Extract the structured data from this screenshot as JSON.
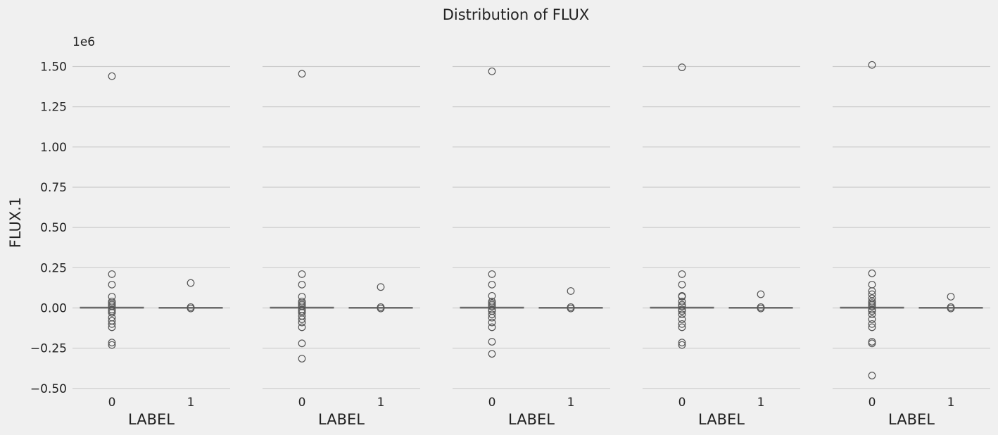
{
  "chart_data": {
    "type": "box",
    "title": "Distribution of FLUX",
    "ylabel": "FLUX.1",
    "y_offset_label": "1e6",
    "ylim": [
      -0.55,
      1.65
    ],
    "yticks": [
      -0.5,
      -0.25,
      0.0,
      0.25,
      0.5,
      0.75,
      1.0,
      1.25,
      1.5
    ],
    "ytick_labels": [
      "−0.50",
      "−0.25",
      "0.00",
      "0.25",
      "0.50",
      "0.75",
      "1.00",
      "1.25",
      "1.50"
    ],
    "grid": true,
    "colors": {
      "background": "#f0f0f0",
      "grid": "#cbcbcb",
      "box": "#6b6b6b",
      "flier": "#555555"
    },
    "panels": [
      {
        "xlabel": "LABEL",
        "categories": [
          "0",
          "1"
        ],
        "boxes": [
          {
            "q1": -0.002,
            "median": 0.0,
            "q3": 0.002,
            "outliers": [
              1.44,
              0.21,
              0.145,
              0.07,
              0.04,
              0.03,
              0.02,
              0.01,
              -0.01,
              -0.02,
              -0.03,
              -0.06,
              -0.08,
              -0.1,
              -0.12,
              -0.215,
              -0.23
            ]
          },
          {
            "q1": -0.001,
            "median": 0.0,
            "q3": 0.001,
            "outliers": [
              0.155,
              0.005,
              -0.003
            ]
          }
        ]
      },
      {
        "xlabel": "LABEL",
        "categories": [
          "0",
          "1"
        ],
        "boxes": [
          {
            "q1": -0.002,
            "median": 0.0,
            "q3": 0.002,
            "outliers": [
              1.455,
              0.21,
              0.145,
              0.07,
              0.04,
              0.03,
              0.02,
              0.01,
              -0.01,
              -0.02,
              -0.03,
              -0.05,
              -0.07,
              -0.09,
              -0.12,
              -0.22,
              -0.315
            ]
          },
          {
            "q1": -0.001,
            "median": 0.0,
            "q3": 0.001,
            "outliers": [
              0.13,
              0.005,
              -0.003
            ]
          }
        ]
      },
      {
        "xlabel": "LABEL",
        "categories": [
          "0",
          "1"
        ],
        "boxes": [
          {
            "q1": -0.002,
            "median": 0.0,
            "q3": 0.002,
            "outliers": [
              1.47,
              0.21,
              0.145,
              0.075,
              0.04,
              0.03,
              0.02,
              0.01,
              -0.01,
              -0.02,
              -0.04,
              -0.06,
              -0.09,
              -0.12,
              -0.21,
              -0.285
            ]
          },
          {
            "q1": -0.001,
            "median": 0.0,
            "q3": 0.001,
            "outliers": [
              0.105,
              0.005,
              -0.003
            ]
          }
        ]
      },
      {
        "xlabel": "LABEL",
        "categories": [
          "0",
          "1"
        ],
        "boxes": [
          {
            "q1": -0.002,
            "median": 0.0,
            "q3": 0.002,
            "outliers": [
              1.495,
              0.21,
              0.145,
              0.075,
              0.07,
              0.04,
              0.02,
              0.01,
              -0.01,
              -0.02,
              -0.04,
              -0.07,
              -0.1,
              -0.12,
              -0.215,
              -0.23
            ]
          },
          {
            "q1": -0.001,
            "median": 0.0,
            "q3": 0.001,
            "outliers": [
              0.085,
              0.005,
              -0.003
            ]
          }
        ]
      },
      {
        "xlabel": "LABEL",
        "categories": [
          "0",
          "1"
        ],
        "boxes": [
          {
            "q1": -0.002,
            "median": 0.0,
            "q3": 0.002,
            "outliers": [
              1.51,
              0.215,
              0.145,
              0.105,
              0.085,
              0.06,
              0.04,
              0.03,
              0.02,
              0.01,
              -0.01,
              -0.02,
              -0.04,
              -0.07,
              -0.1,
              -0.12,
              -0.21,
              -0.22,
              -0.42
            ]
          },
          {
            "q1": -0.001,
            "median": 0.0,
            "q3": 0.001,
            "outliers": [
              0.07,
              0.005,
              -0.003
            ]
          }
        ]
      }
    ]
  }
}
